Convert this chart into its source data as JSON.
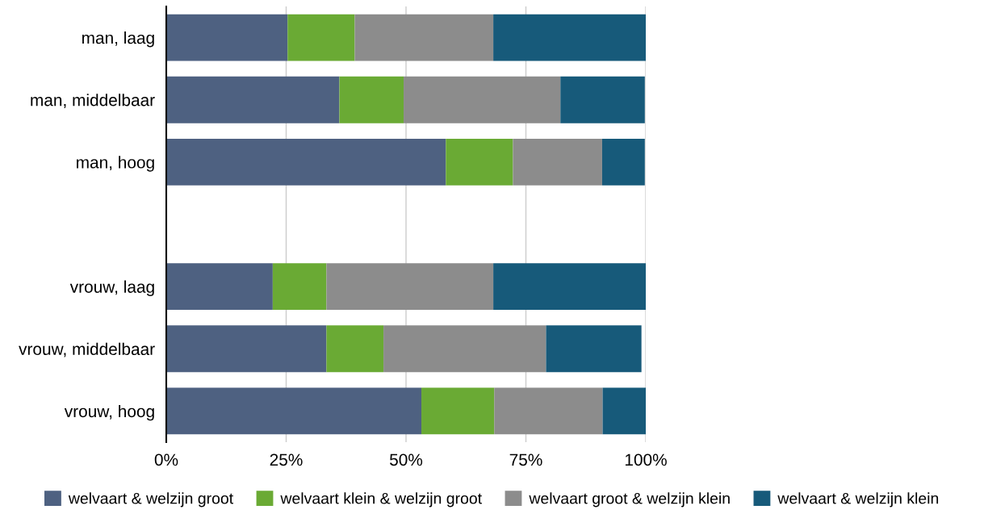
{
  "chart_data": {
    "type": "bar",
    "orientation": "horizontal",
    "stacked": true,
    "categories": [
      "man, laag",
      "man, middelbaar",
      "man, hoog",
      null,
      "vrouw, laag",
      "vrouw, middelbaar",
      "vrouw, hoog"
    ],
    "series": [
      {
        "name": "welvaart & welzijn groot",
        "color": "#4e6181",
        "values": [
          25.3,
          36.1,
          58.3,
          null,
          22.2,
          33.4,
          53.2
        ]
      },
      {
        "name": "welvaart klein & welzijn groot",
        "color": "#6aaa34",
        "values": [
          14.0,
          13.4,
          14.0,
          null,
          11.2,
          11.9,
          15.2
        ]
      },
      {
        "name": "welvaart groot & welzijn klein",
        "color": "#8c8c8c",
        "values": [
          28.9,
          32.7,
          18.6,
          null,
          34.8,
          33.9,
          22.6
        ]
      },
      {
        "name": "welvaart & welzijn klein",
        "color": "#175a7a",
        "values": [
          31.8,
          17.6,
          8.9,
          null,
          31.8,
          19.9,
          9.0
        ]
      }
    ],
    "xlim": [
      0,
      100
    ],
    "xticks": [
      {
        "value": 0,
        "label": "0%"
      },
      {
        "value": 25,
        "label": "25%"
      },
      {
        "value": 50,
        "label": "50%"
      },
      {
        "value": 75,
        "label": "75%"
      },
      {
        "value": 100,
        "label": "100%"
      }
    ],
    "grid": "x",
    "legend": "bottom"
  }
}
